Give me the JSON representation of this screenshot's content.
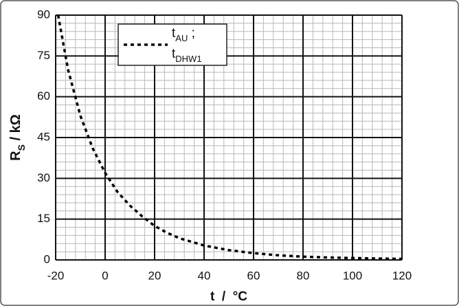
{
  "chart_data": {
    "type": "line",
    "ylabel_parts": [
      "R",
      "S",
      " / kΩ"
    ],
    "xlabel": "t  /  °C",
    "legend_lines": [
      [
        "t",
        "AU",
        " ;"
      ],
      [
        "t",
        "DHW1"
      ]
    ],
    "legend_position": "upper left",
    "grid": true,
    "xlim": [
      -20,
      120
    ],
    "ylim": [
      0,
      90
    ],
    "xticks": [
      -20,
      0,
      20,
      40,
      60,
      80,
      100,
      120
    ],
    "yticks": [
      0,
      15,
      30,
      45,
      60,
      75,
      90
    ],
    "xticks_minor": [
      -16,
      -12,
      -8,
      -4,
      4,
      8,
      12,
      16,
      24,
      28,
      32,
      36,
      44,
      48,
      52,
      56,
      64,
      68,
      72,
      76,
      84,
      88,
      92,
      96,
      104,
      108,
      112,
      116
    ],
    "yticks_minor": [
      3,
      6,
      9,
      12,
      18,
      21,
      24,
      27,
      33,
      36,
      39,
      42,
      48,
      51,
      54,
      57,
      63,
      66,
      69,
      72,
      78,
      81,
      84,
      87
    ],
    "series": [
      {
        "color": "#000000",
        "x": [
          -19,
          -15,
          -10,
          -5,
          0,
          5,
          10,
          15,
          20,
          25,
          30,
          40,
          50,
          60,
          70,
          80,
          90,
          100,
          110,
          120
        ],
        "values": [
          90,
          70,
          53,
          41,
          32,
          25,
          20,
          16,
          12.5,
          10,
          8,
          5.3,
          3.6,
          2.5,
          1.7,
          1.2,
          0.9,
          0.7,
          0.5,
          0.4
        ]
      }
    ]
  }
}
